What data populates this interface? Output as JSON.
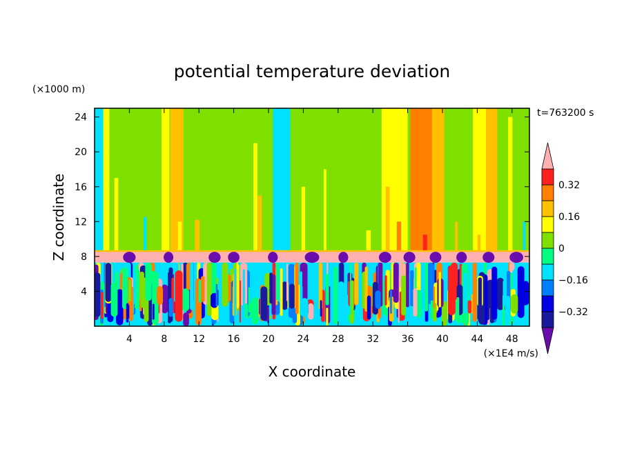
{
  "chart_data": {
    "type": "heatmap",
    "title": "potential temperature deviation",
    "xlabel": "X coordinate",
    "ylabel": "Z coordinate",
    "x_unit": "(×1E4 m/s)",
    "y_unit": "(×1000 m)",
    "time_label": "t=763200 s",
    "xlim": [
      0,
      50
    ],
    "ylim": [
      0,
      25
    ],
    "x_ticks": [
      4,
      8,
      12,
      16,
      20,
      24,
      28,
      32,
      36,
      40,
      44,
      48
    ],
    "y_ticks": [
      4,
      8,
      12,
      16,
      20,
      24
    ],
    "colorbar": {
      "levels": [
        -0.48,
        -0.4,
        -0.32,
        -0.24,
        -0.16,
        -0.08,
        0,
        0.08,
        0.16,
        0.24,
        0.32,
        0.4,
        0.48
      ],
      "tick_values": [
        0.32,
        0.16,
        0,
        -0.16,
        -0.32
      ],
      "tick_labels": [
        "0.32",
        "0.16",
        "0",
        "−0.16",
        "−0.32"
      ],
      "colors": [
        "#6a0dad",
        "#1a1a9c",
        "#0000e0",
        "#0080ff",
        "#00e0ff",
        "#00ff80",
        "#7fe000",
        "#ffff00",
        "#ffc000",
        "#ff8000",
        "#ff2020",
        "#ffb0b0"
      ]
    },
    "upper_bands": [
      {
        "x": [
          0,
          1
        ],
        "level": -0.16
      },
      {
        "x": [
          1,
          1.7
        ],
        "level": 0.08
      },
      {
        "x": [
          7.7,
          8.6
        ],
        "level": 0.08
      },
      {
        "x": [
          8.7,
          10.2
        ],
        "level": 0.16
      },
      {
        "x": [
          20.5,
          22.5
        ],
        "level": -0.16
      },
      {
        "x": [
          33,
          36
        ],
        "level": 0.08
      },
      {
        "x": [
          36.3,
          38.8
        ],
        "level": 0.24
      },
      {
        "x": [
          38.8,
          40.2
        ],
        "level": 0.16
      },
      {
        "x": [
          43.5,
          45
        ],
        "level": 0.08
      },
      {
        "x": [
          45,
          46.3
        ],
        "level": 0.16
      }
    ],
    "lower_layer": {
      "z_range": [
        0,
        7.3
      ],
      "inversion_z": [
        7.3,
        8.6
      ]
    }
  }
}
